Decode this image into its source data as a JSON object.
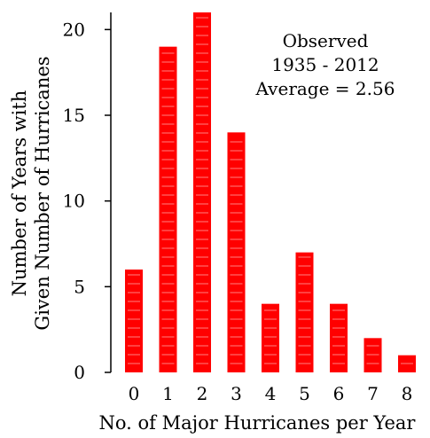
{
  "chart_data": {
    "type": "bar",
    "categories": [
      "0",
      "1",
      "2",
      "3",
      "4",
      "5",
      "6",
      "7",
      "8"
    ],
    "values": [
      6,
      19,
      21,
      14,
      4,
      7,
      4,
      2,
      1
    ],
    "bar_color": "#ff0000",
    "bar_stripe_color": "#ff8080",
    "xlabel": "No. of Major Hurricanes per Year",
    "ylabel_lines": [
      "Number of Years with",
      "Given Number of Hurricanes"
    ],
    "ylim": [
      0,
      21
    ],
    "yticks": [
      0,
      5,
      10,
      15,
      20
    ],
    "grid": false,
    "annotation": {
      "lines": [
        "Observed",
        "1935 - 2012",
        "Average = 2.56"
      ],
      "placement": "top-right"
    }
  }
}
